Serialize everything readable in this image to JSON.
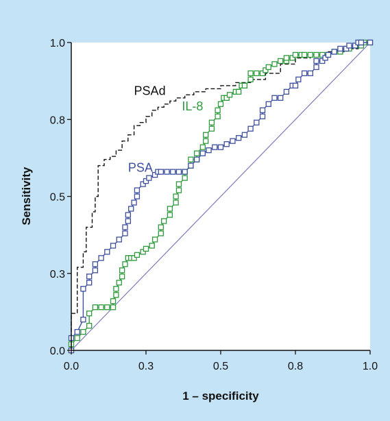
{
  "chart_data": {
    "type": "line",
    "title": "",
    "xlabel": "1 – specificity",
    "ylabel": "Sensitivity",
    "xlim": [
      0,
      1
    ],
    "ylim": [
      0,
      1
    ],
    "x_ticks": [
      "0.0",
      "0.3",
      "0.5",
      "0.8",
      "1.0"
    ],
    "y_ticks": [
      "0.0",
      "0.3",
      "0.5",
      "0.8",
      "1.0"
    ],
    "grid": false,
    "legend": "inline labels",
    "diagonal": {
      "x": [
        0,
        1
      ],
      "y": [
        0,
        1
      ],
      "color": "#7b7bbd"
    },
    "series": [
      {
        "name": "PSAd",
        "color": "#111111",
        "style": "dashed",
        "markers": false,
        "label_at": [
          0.21,
          0.83
        ],
        "x": [
          0,
          0,
          0.02,
          0.02,
          0.04,
          0.04,
          0.05,
          0.05,
          0.07,
          0.07,
          0.08,
          0.08,
          0.09,
          0.09,
          0.11,
          0.11,
          0.13,
          0.13,
          0.15,
          0.15,
          0.17,
          0.17,
          0.19,
          0.19,
          0.21,
          0.21,
          0.23,
          0.23,
          0.25,
          0.25,
          0.27,
          0.27,
          0.29,
          0.29,
          0.31,
          0.31,
          0.33,
          0.33,
          0.35,
          0.35,
          0.38,
          0.38,
          0.41,
          0.41,
          0.45,
          0.45,
          0.5,
          0.5,
          0.55,
          0.55,
          0.6,
          0.6,
          0.65,
          0.65,
          0.7,
          0.7,
          0.75,
          0.75,
          0.8,
          0.8,
          0.86,
          0.86,
          0.92,
          0.92,
          0.96,
          0.96,
          1.0
        ],
        "y": [
          0,
          0.12,
          0.12,
          0.27,
          0.27,
          0.32,
          0.32,
          0.4,
          0.4,
          0.45,
          0.45,
          0.5,
          0.5,
          0.6,
          0.6,
          0.62,
          0.62,
          0.63,
          0.63,
          0.65,
          0.65,
          0.68,
          0.68,
          0.7,
          0.7,
          0.73,
          0.73,
          0.74,
          0.74,
          0.76,
          0.76,
          0.78,
          0.78,
          0.79,
          0.79,
          0.8,
          0.8,
          0.81,
          0.81,
          0.82,
          0.82,
          0.83,
          0.83,
          0.84,
          0.84,
          0.85,
          0.85,
          0.86,
          0.86,
          0.87,
          0.87,
          0.88,
          0.88,
          0.9,
          0.9,
          0.93,
          0.93,
          0.95,
          0.95,
          0.96,
          0.96,
          0.97,
          0.97,
          0.98,
          0.98,
          1.0,
          1.0
        ]
      },
      {
        "name": "IL-8",
        "color": "#2e9a3c",
        "style": "solid",
        "markers": true,
        "label_at": [
          0.37,
          0.78
        ],
        "x": [
          0,
          0,
          0.02,
          0.04,
          0.06,
          0.06,
          0.08,
          0.1,
          0.12,
          0.14,
          0.14,
          0.15,
          0.15,
          0.16,
          0.17,
          0.17,
          0.18,
          0.19,
          0.2,
          0.21,
          0.22,
          0.24,
          0.25,
          0.27,
          0.28,
          0.3,
          0.3,
          0.31,
          0.33,
          0.33,
          0.35,
          0.35,
          0.36,
          0.36,
          0.38,
          0.38,
          0.4,
          0.4,
          0.42,
          0.42,
          0.44,
          0.45,
          0.45,
          0.47,
          0.47,
          0.49,
          0.49,
          0.5,
          0.51,
          0.52,
          0.53,
          0.55,
          0.56,
          0.57,
          0.58,
          0.6,
          0.6,
          0.62,
          0.64,
          0.65,
          0.66,
          0.68,
          0.7,
          0.72,
          0.72,
          0.74,
          0.75,
          0.77,
          0.78,
          0.8,
          0.82,
          0.84,
          0.86,
          0.88,
          0.9,
          0.92,
          0.93,
          0.95,
          0.97,
          0.97,
          0.98,
          1.0
        ],
        "y": [
          0,
          0.02,
          0.04,
          0.06,
          0.08,
          0.12,
          0.14,
          0.14,
          0.14,
          0.14,
          0.16,
          0.18,
          0.2,
          0.22,
          0.24,
          0.26,
          0.28,
          0.3,
          0.3,
          0.3,
          0.31,
          0.32,
          0.33,
          0.34,
          0.36,
          0.38,
          0.4,
          0.42,
          0.44,
          0.46,
          0.48,
          0.5,
          0.52,
          0.54,
          0.56,
          0.58,
          0.6,
          0.62,
          0.62,
          0.64,
          0.66,
          0.68,
          0.7,
          0.72,
          0.74,
          0.76,
          0.78,
          0.8,
          0.82,
          0.82,
          0.83,
          0.84,
          0.84,
          0.86,
          0.86,
          0.88,
          0.9,
          0.9,
          0.9,
          0.91,
          0.92,
          0.93,
          0.94,
          0.94,
          0.95,
          0.95,
          0.96,
          0.96,
          0.96,
          0.96,
          0.96,
          0.96,
          0.96,
          0.97,
          0.97,
          0.98,
          0.98,
          0.99,
          0.99,
          1.0,
          1.0,
          1.0
        ]
      },
      {
        "name": "PSA",
        "color": "#3d4f9e",
        "style": "solid",
        "markers": true,
        "label_at": [
          0.19,
          0.58
        ],
        "x": [
          0,
          0,
          0.02,
          0.04,
          0.04,
          0.06,
          0.06,
          0.08,
          0.08,
          0.1,
          0.12,
          0.14,
          0.16,
          0.18,
          0.18,
          0.19,
          0.19,
          0.2,
          0.21,
          0.22,
          0.22,
          0.24,
          0.25,
          0.26,
          0.28,
          0.29,
          0.3,
          0.32,
          0.34,
          0.36,
          0.38,
          0.4,
          0.42,
          0.44,
          0.46,
          0.48,
          0.5,
          0.52,
          0.54,
          0.56,
          0.58,
          0.6,
          0.62,
          0.64,
          0.64,
          0.66,
          0.68,
          0.7,
          0.72,
          0.74,
          0.75,
          0.76,
          0.78,
          0.8,
          0.82,
          0.82,
          0.84,
          0.85,
          0.86,
          0.88,
          0.9,
          0.92,
          0.93,
          0.95,
          0.96,
          0.97,
          1.0
        ],
        "y": [
          0,
          0.04,
          0.06,
          0.1,
          0.2,
          0.22,
          0.24,
          0.26,
          0.28,
          0.3,
          0.32,
          0.34,
          0.36,
          0.38,
          0.4,
          0.42,
          0.44,
          0.46,
          0.48,
          0.5,
          0.52,
          0.54,
          0.55,
          0.56,
          0.57,
          0.58,
          0.58,
          0.58,
          0.58,
          0.58,
          0.58,
          0.6,
          0.62,
          0.64,
          0.65,
          0.66,
          0.66,
          0.67,
          0.68,
          0.69,
          0.7,
          0.72,
          0.74,
          0.76,
          0.78,
          0.8,
          0.82,
          0.82,
          0.84,
          0.86,
          0.86,
          0.88,
          0.9,
          0.9,
          0.92,
          0.94,
          0.94,
          0.95,
          0.96,
          0.97,
          0.98,
          0.98,
          0.99,
          0.99,
          1.0,
          1.0,
          1.0
        ]
      }
    ]
  }
}
